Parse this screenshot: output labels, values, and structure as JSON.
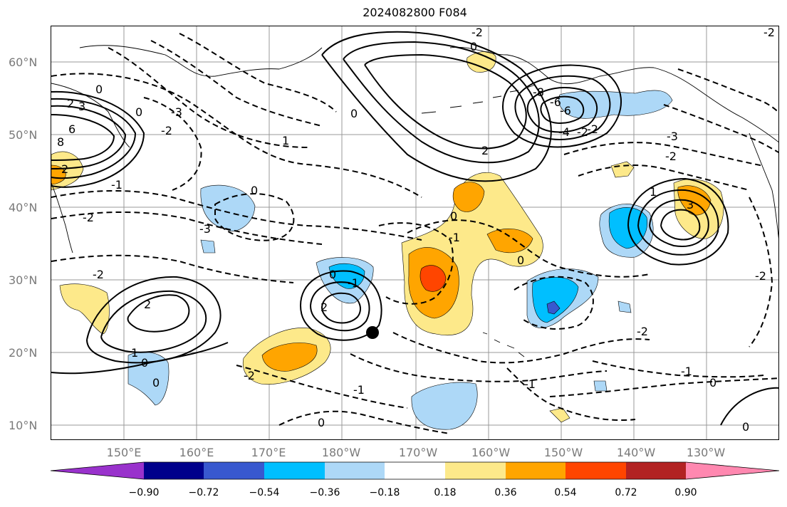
{
  "title": "2024082800 F084",
  "lat_labels": [
    "60°N",
    "50°N",
    "40°N",
    "30°N",
    "20°N",
    "10°N"
  ],
  "lon_labels": [
    "150°E",
    "160°E",
    "170°E",
    "180°W",
    "170°W",
    "160°W",
    "150°W",
    "140°W",
    "130°W"
  ],
  "colorbar": {
    "ticks": [
      "−0.90",
      "−0.72",
      "−0.54",
      "−0.36",
      "−0.18",
      "0.18",
      "0.36",
      "0.54",
      "0.72",
      "0.90"
    ],
    "colors": [
      "#9932cc",
      "#00008b",
      "#3858cf",
      "#00bfff",
      "#add8f7",
      "#ffffff",
      "#fde98a",
      "#ffa500",
      "#ff4500",
      "#b22222",
      "#ff88b0"
    ]
  },
  "contour_labels": [
    "0",
    "2",
    "3",
    "6",
    "8",
    "0",
    "-3",
    "-2",
    "1",
    "-1",
    "2",
    "-2",
    "0",
    "-3",
    "-2",
    "0",
    "-1",
    "2",
    "2",
    "1",
    "0",
    "-2",
    "0",
    "-1",
    "0",
    "-1",
    "0",
    "2",
    "0",
    "-1",
    "-2",
    "0",
    "3",
    "-3",
    "-2",
    "-6",
    "-8",
    "-6",
    "-4",
    "-2",
    "-2",
    "1",
    "-1",
    "0",
    "-2",
    "-2",
    "-2",
    "0",
    "0"
  ],
  "marker": "storm-center-dot"
}
